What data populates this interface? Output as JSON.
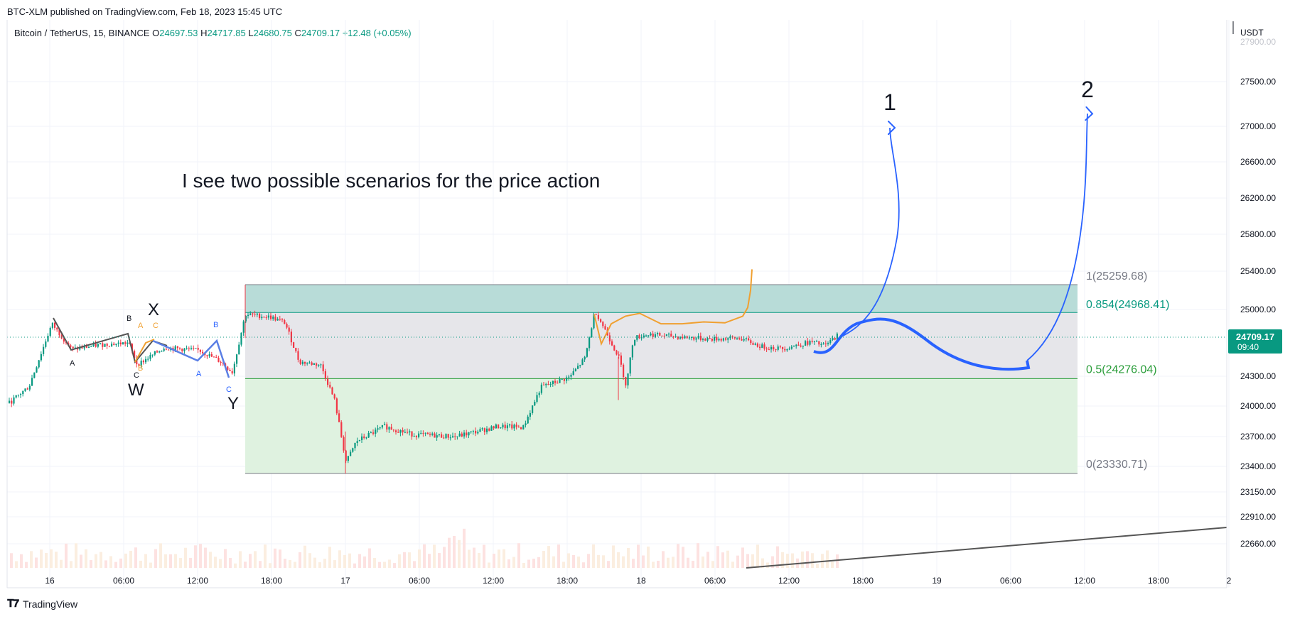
{
  "header": {
    "publisher": "BTC-XLM published on TradingView.com, Feb 18, 2023 15:45 UTC"
  },
  "legend": {
    "symbol": "Bitcoin / TetherUS, 15, BINANCE",
    "o_label": "O",
    "o": "24697.53",
    "h_label": "H",
    "h": "24717.85",
    "l_label": "L",
    "l": "24680.75",
    "c_label": "C",
    "c": "24709.17",
    "change": "+12.48 (+0.05%)"
  },
  "footer": {
    "logo": "TradingView"
  },
  "colors": {
    "up": "#089981",
    "down": "#f23645",
    "orange": "#f0a030",
    "blue": "#2962ff",
    "zone_top": "#b8dcd8",
    "zone_mid": "#e6e6ea",
    "zone_bottom": "#dff2e0",
    "fib_green": "#2a9d3a",
    "fib_teal": "#089981",
    "fib_grey": "#787b86"
  },
  "chart_data": {
    "type": "candlestick",
    "title": "Bitcoin / TetherUS, 15, BINANCE",
    "currency": "USDT",
    "ylim": [
      22450,
      27850
    ],
    "y_ticks": [
      "27500.00",
      "27000.00",
      "26600.00",
      "26200.00",
      "25800.00",
      "25400.00",
      "25000.00",
      "24300.00",
      "24000.00",
      "23700.00",
      "23400.00",
      "23150.00",
      "22910.00",
      "22660.00"
    ],
    "x_ticks": [
      "16",
      "06:00",
      "12:00",
      "18:00",
      "17",
      "06:00",
      "12:00",
      "18:00",
      "18",
      "06:00",
      "12:00",
      "18:00",
      "19",
      "06:00",
      "12:00",
      "18:00",
      "2"
    ],
    "last_price": {
      "value": "24709.17",
      "countdown": "09:40"
    },
    "annotation": "I see two possible scenarios for the price action",
    "scenario_labels": [
      "1",
      "2"
    ],
    "wave_labels": {
      "big": [
        "X",
        "W",
        "Y"
      ],
      "small": [
        "A",
        "B",
        "C",
        "A",
        "B",
        "C",
        "A",
        "B",
        "C"
      ]
    },
    "fib_levels": [
      {
        "label": "1(25259.68)",
        "value": 25259.68
      },
      {
        "label": "0.854(24968.41)",
        "value": 24968.41
      },
      {
        "label": "0.5(24276.04)",
        "value": 24276.04
      },
      {
        "label": "0(23330.71)",
        "value": 23330.71
      }
    ]
  }
}
